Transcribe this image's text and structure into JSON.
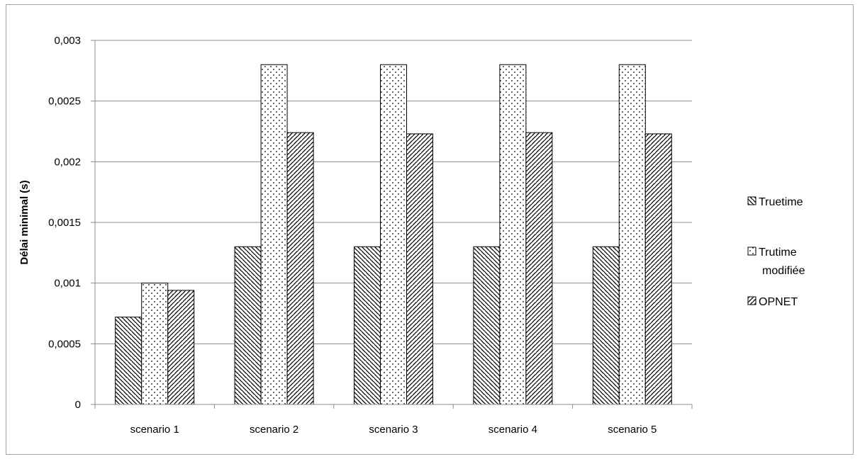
{
  "chart_data": {
    "type": "bar",
    "title": "",
    "xlabel": "",
    "ylabel": "Délai minimal (s)",
    "categories": [
      "scenario 1",
      "scenario 2",
      "scenario 3",
      "scenario 4",
      "scenario 5"
    ],
    "series": [
      {
        "name": "Truetime",
        "values": [
          0.00072,
          0.0013,
          0.0013,
          0.0013,
          0.0013
        ],
        "pattern": "hatch-back"
      },
      {
        "name": "Trutime modifiée",
        "values": [
          0.001,
          0.0028,
          0.0028,
          0.0028,
          0.0028
        ],
        "pattern": "dots"
      },
      {
        "name": "OPNET",
        "values": [
          0.00094,
          0.00224,
          0.00223,
          0.00224,
          0.00223
        ],
        "pattern": "hatch-forward"
      }
    ],
    "ylim": [
      0,
      0.003
    ],
    "yticks": [
      0,
      0.0005,
      0.001,
      0.0015,
      0.002,
      0.0025,
      0.003
    ],
    "ytick_labels": [
      "0",
      "0,0005",
      "0,001",
      "0,0015",
      "0,002",
      "0,0025",
      "0,003"
    ],
    "grid": true,
    "legend_position": "right",
    "colors": {
      "gridline": "#8c8c8c",
      "bar_stroke": "#000000",
      "pattern": "#000000",
      "frame": "#a6a6a6"
    }
  }
}
